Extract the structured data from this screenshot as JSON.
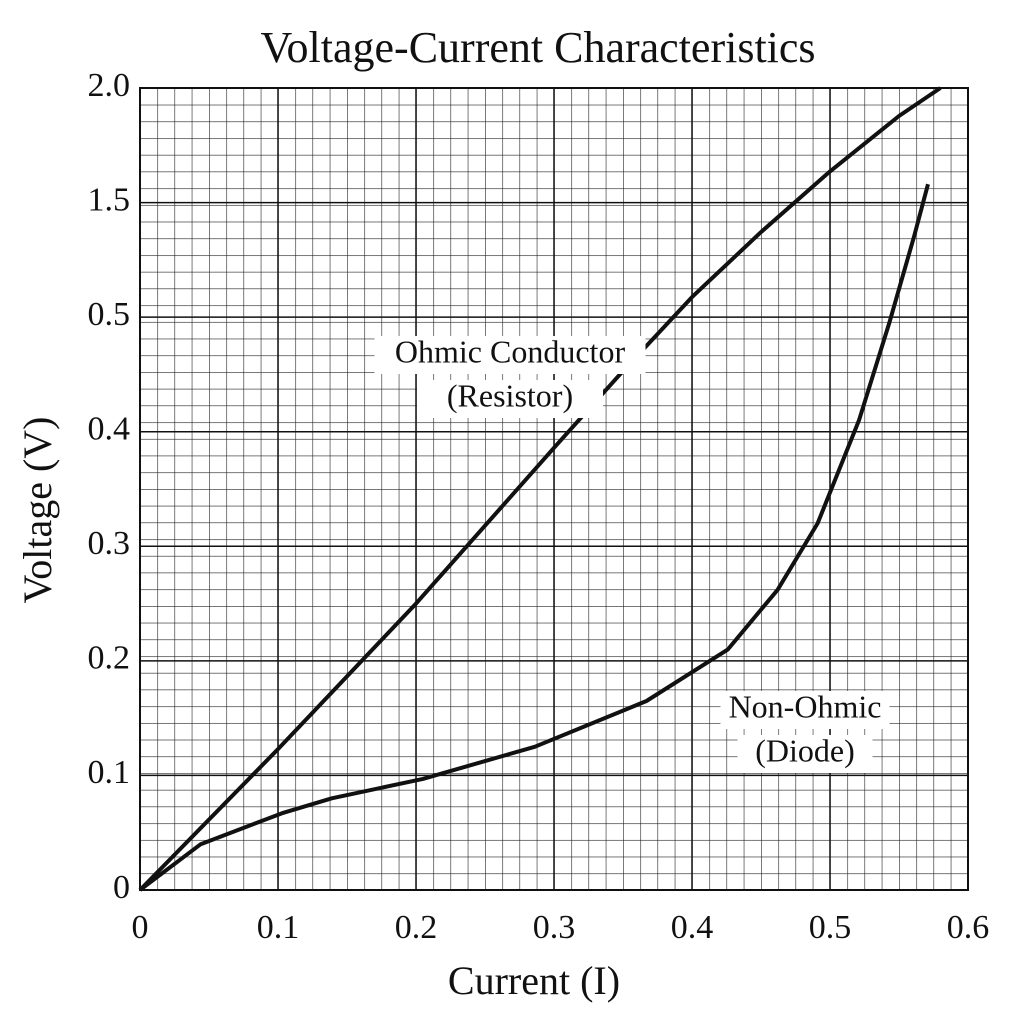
{
  "chart_data": {
    "type": "line",
    "title": "Voltage-Current Characteristics",
    "x_label": "Current (I)",
    "y_label": "Voltage (V)",
    "xlim": [
      0,
      0.6
    ],
    "xticks": [
      0,
      0.1,
      0.2,
      0.3,
      0.4,
      0.5,
      0.6
    ],
    "ylim": [
      0,
      2.0
    ],
    "yticks": [
      0,
      0.1,
      0.2,
      0.3,
      0.4,
      0.5,
      1.5,
      {
        "value": 2.0,
        "label": "2.0"
      }
    ],
    "grid": true,
    "series": [
      {
        "name": "Ohmic Conductor (Resistor)",
        "color": "#111111",
        "x": [
          0,
          0.1,
          0.2,
          0.3,
          0.35,
          0.4,
          0.45,
          0.5,
          0.55,
          0.58
        ],
        "values": [
          0,
          0.123,
          0.25,
          0.386,
          0.453,
          0.675,
          1.242,
          1.636,
          1.878,
          2.0
        ]
      },
      {
        "name": "Non-Ohmic (Diode)",
        "color": "#111111",
        "x": [
          0,
          0.044,
          0.103,
          0.139,
          0.205,
          0.286,
          0.367,
          0.426,
          0.462,
          0.491,
          0.521,
          0.543,
          0.561,
          0.571
        ],
        "values": [
          0,
          0.04,
          0.067,
          0.08,
          0.097,
          0.125,
          0.165,
          0.21,
          0.262,
          0.32,
          0.41,
          0.495,
          1.208,
          1.58
        ]
      }
    ],
    "annotations": [
      {
        "lines": [
          "Ohmic Conductor",
          "(Resistor)"
        ],
        "series": 0
      },
      {
        "lines": [
          "Non-Ohmic",
          "(Diode)"
        ],
        "series": 1
      }
    ]
  }
}
